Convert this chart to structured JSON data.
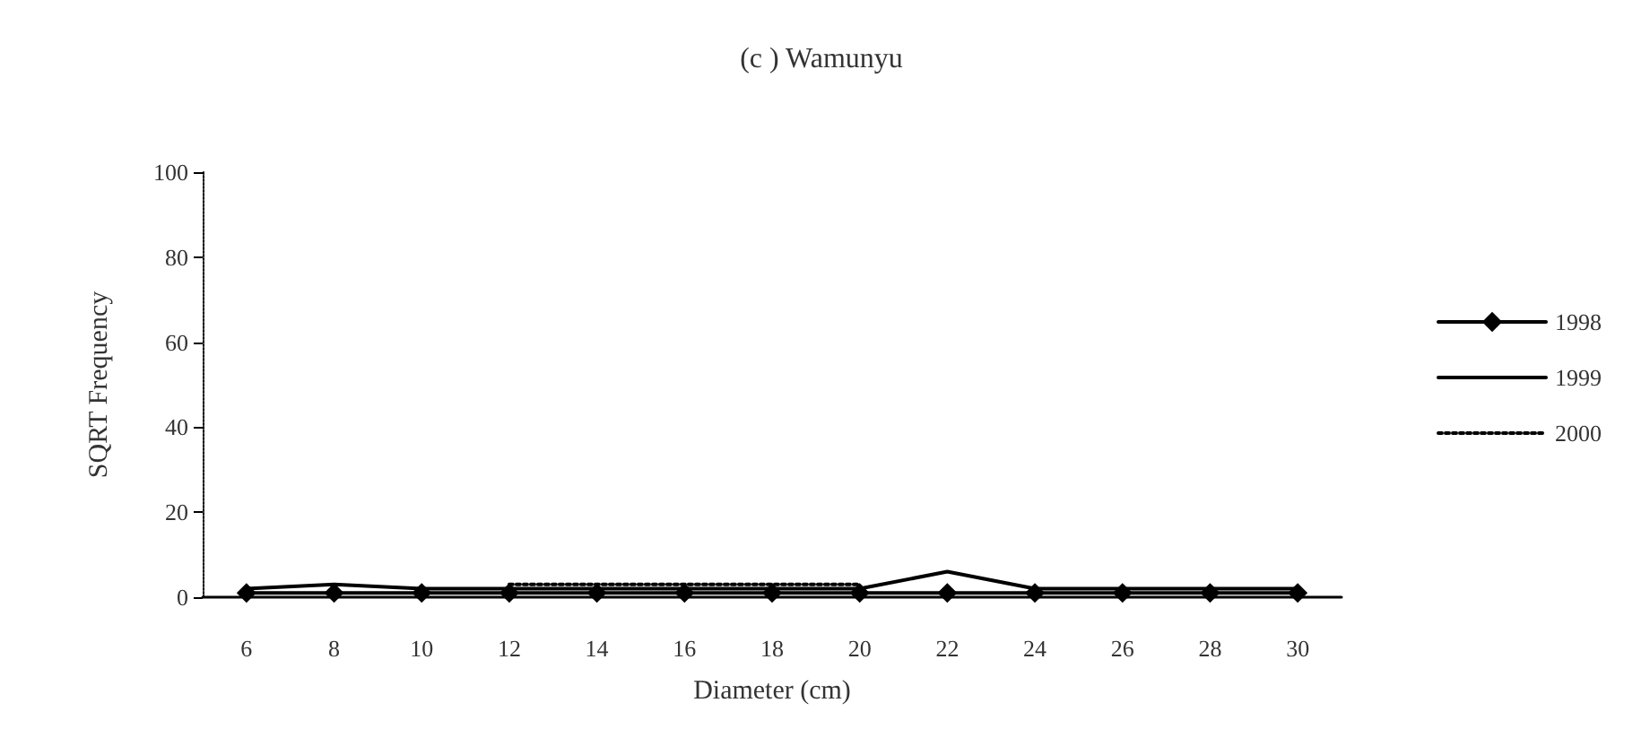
{
  "chart_data": {
    "type": "line",
    "title": "(c ) Wamunyu",
    "xlabel": "Diameter (cm)",
    "ylabel": "SQRT Frequency",
    "categories": [
      "6",
      "8",
      "10",
      "12",
      "14",
      "16",
      "18",
      "20",
      "22",
      "24",
      "26",
      "28",
      "30"
    ],
    "series": [
      {
        "name": "1998",
        "color": "#000000",
        "marker": "diamond",
        "line_style": "solid",
        "values": [
          1,
          1,
          1,
          1,
          1,
          1,
          1,
          1,
          1,
          1,
          1,
          1,
          1
        ]
      },
      {
        "name": "1999",
        "color": "#000000",
        "marker": "none",
        "line_style": "solid",
        "values": [
          2,
          3,
          2,
          2,
          2,
          2,
          2,
          2,
          6,
          2,
          2,
          2,
          2
        ]
      },
      {
        "name": "2000",
        "color": "#000000",
        "marker": "none",
        "line_style": "dotted",
        "values": [
          null,
          null,
          null,
          3,
          3,
          3,
          3,
          3,
          null,
          null,
          null,
          null,
          null
        ]
      }
    ],
    "ylim": [
      0,
      100
    ],
    "yticks": [
      0,
      20,
      40,
      60,
      80,
      100
    ],
    "grid": false,
    "legend": "right"
  }
}
